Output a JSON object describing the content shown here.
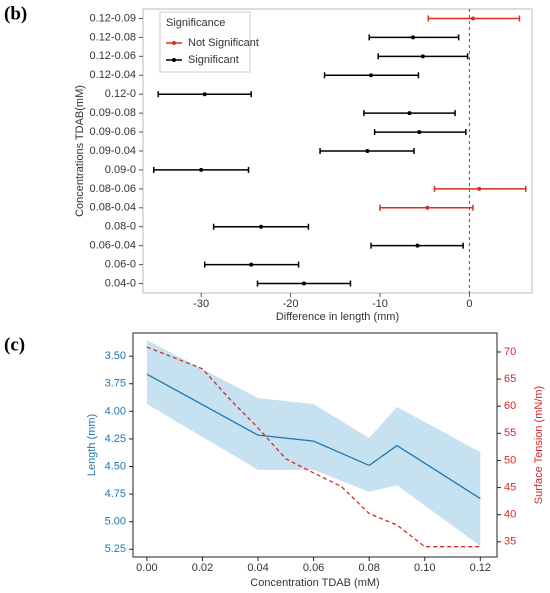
{
  "chart_data": [
    {
      "type": "errorbar",
      "label": "(b)",
      "xlabel": "Difference in length (mm)",
      "ylabel": "Concentrations TDAB(mM)",
      "categories": [
        "0.12-0.09",
        "0.12-0.08",
        "0.12-0.06",
        "0.12-0.04",
        "0.12-0",
        "0.09-0.08",
        "0.09-0.06",
        "0.09-0.04",
        "0.09-0",
        "0.08-0.06",
        "0.08-0.04",
        "0.08-0",
        "0.06-0.04",
        "0.06-0",
        "0.04-0"
      ],
      "legend_title": "Significance",
      "legend": "upper left",
      "series": [
        {
          "name": "Not Significant",
          "color": "#d7301f",
          "values": [
            0.4,
            null,
            null,
            null,
            null,
            null,
            null,
            null,
            null,
            1.1,
            -4.7,
            null,
            null,
            null,
            null
          ],
          "low": [
            -4.6,
            null,
            null,
            null,
            null,
            null,
            null,
            null,
            null,
            -3.9,
            -10.0,
            null,
            null,
            null,
            null
          ],
          "high": [
            5.6,
            null,
            null,
            null,
            null,
            null,
            null,
            null,
            null,
            6.3,
            0.4,
            null,
            null,
            null,
            null
          ]
        },
        {
          "name": "Significant",
          "color": "#000000",
          "values": [
            null,
            -6.3,
            -5.2,
            -11.0,
            -29.6,
            -6.7,
            -5.6,
            -11.4,
            -30.0,
            null,
            null,
            -23.3,
            -5.8,
            -24.4,
            -18.5
          ],
          "low": [
            null,
            -11.2,
            -10.2,
            -16.2,
            -34.8,
            -11.8,
            -10.6,
            -16.7,
            -35.3,
            null,
            null,
            -28.6,
            -11.0,
            -29.6,
            -23.7
          ],
          "high": [
            null,
            -1.2,
            -0.2,
            -5.7,
            -24.4,
            -1.6,
            -0.4,
            -6.2,
            -24.7,
            null,
            null,
            -18.0,
            -0.7,
            -19.1,
            -13.3
          ]
        }
      ],
      "xlim": [
        -36.5,
        7
      ],
      "xticks": [
        -30,
        -20,
        -10,
        0
      ],
      "vline": 0
    },
    {
      "type": "line",
      "label": "(c)",
      "xlabel": "Concentration TDAB (mM)",
      "ylabel": "Length (mm)",
      "y2label": "Surface Tension (mN/m)",
      "xlim": [
        -0.005,
        0.126
      ],
      "xticks": [
        {
          "value": 0,
          "label": "0.00"
        },
        {
          "value": 0.02,
          "label": "0.02"
        },
        {
          "value": 0.04,
          "label": "0.04"
        },
        {
          "value": 0.06,
          "label": "0.06"
        },
        {
          "value": 0.08,
          "label": "0.08"
        },
        {
          "value": 0.1,
          "label": "0.10"
        },
        {
          "value": 0.12,
          "label": "0.12"
        }
      ],
      "ylim": [
        3.29,
        5.32
      ],
      "y_inverted": true,
      "yticks": [
        {
          "value": 3.5,
          "label": "3.50"
        },
        3.75,
        {
          "value": 4,
          "label": "4.00"
        },
        4.25,
        {
          "value": 4.5,
          "label": "4.50"
        },
        4.75,
        {
          "value": 5,
          "label": "5.00"
        },
        5.25
      ],
      "y_color": "#1f77b4",
      "y2lim": [
        32.2,
        73.5
      ],
      "y2ticks": [
        35,
        40,
        45,
        50,
        55,
        60,
        65,
        70
      ],
      "y2_color": "#d62728",
      "series": [
        {
          "name": "Length",
          "color": "#1f77b4",
          "band_color": "#c6e2f0",
          "x": [
            0,
            0.04,
            0.06,
            0.08,
            0.09,
            0.12
          ],
          "values": [
            3.663,
            4.216,
            4.27,
            4.49,
            4.31,
            4.79
          ],
          "low": [
            3.355,
            3.88,
            3.935,
            4.24,
            3.96,
            4.37
          ],
          "high": [
            3.935,
            4.53,
            4.53,
            4.73,
            4.67,
            5.22
          ]
        },
        {
          "name": "Surface Tension",
          "color": "#d62728",
          "axis": "y2",
          "dashed": true,
          "x": [
            0,
            0.02,
            0.03,
            0.04,
            0.05,
            0.06,
            0.07,
            0.08,
            0.09,
            0.1,
            0.12
          ],
          "values": [
            70.9,
            66.9,
            61.2,
            56.0,
            50.3,
            47.7,
            45.2,
            40.2,
            38.1,
            34.1,
            34.1
          ]
        }
      ]
    }
  ]
}
